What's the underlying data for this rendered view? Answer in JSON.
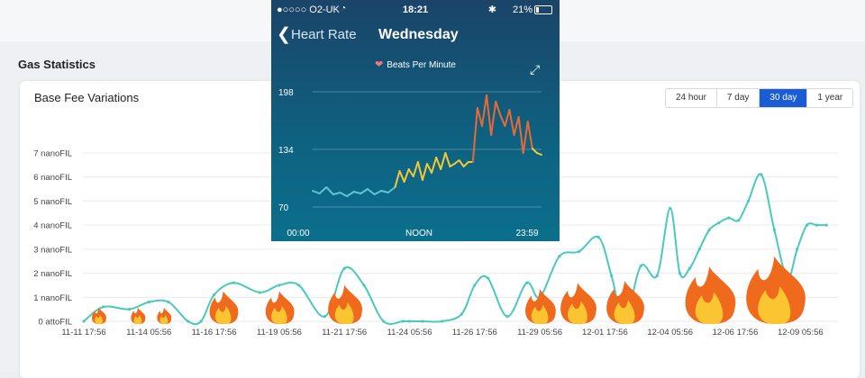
{
  "page": {
    "section_title": "Gas Statistics",
    "card_title": "Base Fee Variations"
  },
  "ranges": [
    {
      "label": "24 hour",
      "active": false
    },
    {
      "label": "7 day",
      "active": false
    },
    {
      "label": "30 day",
      "active": true
    },
    {
      "label": "1 year",
      "active": false
    }
  ],
  "colors": {
    "line": "#4ac9bd",
    "active_range": "#1a5bd6",
    "grid": "#e8eaee",
    "phone_bpm_low": "#5fc4d6",
    "phone_bpm_mid": "#f3c934",
    "phone_bpm_high": "#e86a34"
  },
  "chart_data": [
    {
      "type": "line",
      "title": "Base Fee Variations",
      "y_tick_labels": [
        "0 attoFIL",
        "1 nanoFIL",
        "2 nanoFIL",
        "3 nanoFIL",
        "4 nanoFIL",
        "5 nanoFIL",
        "6 nanoFIL",
        "7 nanoFIL"
      ],
      "x_tick_labels": [
        "11-11 17:56",
        "11-14 05:56",
        "11-16 17:56",
        "11-19 05:56",
        "11-21 17:56",
        "11-24 05:56",
        "11-26 17:56",
        "11-29 05:56",
        "12-01 17:56",
        "12-04 05:56",
        "12-06 17:56",
        "12-09 05:56"
      ],
      "ylim": [
        0,
        7
      ],
      "grid": true,
      "series": [
        {
          "x": [
            0,
            0.3,
            0.7,
            1.0,
            1.3,
            1.6,
            1.8,
            2.0,
            2.3,
            2.7,
            3.0,
            3.3,
            3.7,
            4.0,
            4.3,
            4.6,
            4.9,
            5.0,
            5.2,
            5.5,
            5.8,
            6.0,
            6.2,
            6.5,
            6.8,
            7.0,
            7.3,
            7.6,
            7.9,
            8.1,
            8.3,
            8.55,
            8.8,
            9.0,
            9.15,
            9.3,
            9.45,
            9.6,
            9.75,
            9.9,
            10.05,
            10.2,
            10.4,
            10.6,
            10.8,
            10.95,
            11.1,
            11.25,
            11.4
          ],
          "y": [
            0.0,
            0.6,
            0.5,
            0.8,
            0.8,
            0.0,
            0.0,
            1.1,
            1.6,
            1.2,
            1.5,
            1.5,
            0.2,
            2.2,
            1.5,
            0.0,
            0.0,
            0.0,
            0.0,
            0.0,
            0.3,
            1.5,
            1.8,
            0.2,
            1.6,
            1.0,
            2.7,
            2.9,
            3.5,
            1.9,
            0.0,
            2.3,
            1.9,
            4.7,
            2.0,
            2.2,
            3.0,
            3.8,
            4.1,
            4.3,
            4.2,
            5.0,
            6.1,
            3.8,
            1.8,
            3.0,
            4.0,
            4.0,
            4.0
          ]
        }
      ]
    },
    {
      "type": "line",
      "title": "Beats Per Minute",
      "x_tick_labels": [
        "00:00",
        "NOON",
        "23:59"
      ],
      "y_tick_labels": [
        "70",
        "134",
        "198"
      ],
      "ylim": [
        70,
        198
      ],
      "series": [
        {
          "x": [
            0.0,
            0.03,
            0.06,
            0.09,
            0.12,
            0.15,
            0.18,
            0.21,
            0.24,
            0.27,
            0.3,
            0.33,
            0.36,
            0.38,
            0.4,
            0.42,
            0.44,
            0.46,
            0.48,
            0.5,
            0.52,
            0.54,
            0.56,
            0.58,
            0.6,
            0.62,
            0.64,
            0.66,
            0.68,
            0.7,
            0.72,
            0.74,
            0.76,
            0.78,
            0.8,
            0.82,
            0.84,
            0.86,
            0.88,
            0.9,
            0.92,
            0.94,
            0.96,
            0.98,
            1.0
          ],
          "y": [
            88,
            85,
            92,
            84,
            86,
            82,
            87,
            85,
            90,
            84,
            88,
            86,
            92,
            110,
            98,
            112,
            104,
            120,
            100,
            118,
            108,
            125,
            112,
            130,
            115,
            118,
            122,
            115,
            120,
            120,
            180,
            160,
            194,
            150,
            187,
            172,
            160,
            178,
            150,
            170,
            130,
            165,
            135,
            130,
            128
          ]
        }
      ]
    }
  ],
  "phone": {
    "carrier": "●○○○○ O2-UK",
    "time": "18:21",
    "battery": "21%",
    "battery_level": 0.21,
    "back_label": "Heart Rate",
    "title": "Wednesday",
    "metric_label": "Beats Per Minute"
  },
  "icons": [
    "wifi-icon",
    "bluetooth-icon",
    "battery-icon",
    "chevron-left-icon",
    "heart-icon",
    "expand-icon",
    "fire-icon"
  ],
  "fire_markers": [
    {
      "x": 0.23,
      "size": 0.8
    },
    {
      "x": 0.83,
      "size": 0.8
    },
    {
      "x": 1.23,
      "size": 0.8
    },
    {
      "x": 2.14,
      "size": 1.6
    },
    {
      "x": 3.0,
      "size": 1.6
    },
    {
      "x": 4.0,
      "size": 1.9
    },
    {
      "x": 7.0,
      "size": 1.7
    },
    {
      "x": 7.58,
      "size": 2.0
    },
    {
      "x": 8.3,
      "size": 2.1
    },
    {
      "x": 9.6,
      "size": 2.8
    },
    {
      "x": 10.6,
      "size": 3.3
    }
  ]
}
